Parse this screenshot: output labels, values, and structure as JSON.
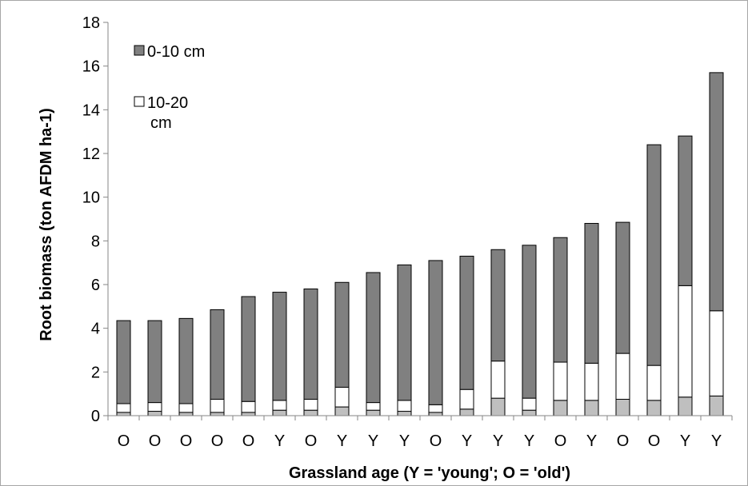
{
  "chart_data": {
    "type": "bar",
    "stacked": true,
    "categories": [
      "O",
      "O",
      "O",
      "O",
      "O",
      "Y",
      "O",
      "Y",
      "Y",
      "Y",
      "O",
      "Y",
      "Y",
      "Y",
      "O",
      "Y",
      "O",
      "O",
      "Y",
      "Y"
    ],
    "series": [
      {
        "values": [
          0.15,
          0.2,
          0.15,
          0.15,
          0.15,
          0.25,
          0.25,
          0.4,
          0.25,
          0.2,
          0.15,
          0.3,
          0.8,
          0.25,
          0.7,
          0.7,
          0.75,
          0.7,
          0.85,
          0.9
        ],
        "color": "#bfbfbf"
      },
      {
        "name": "10-20 cm",
        "values": [
          0.4,
          0.4,
          0.4,
          0.6,
          0.5,
          0.45,
          0.5,
          0.9,
          0.35,
          0.5,
          0.35,
          0.9,
          1.7,
          0.55,
          1.75,
          1.7,
          2.1,
          1.6,
          5.1,
          3.9
        ],
        "color": "#ffffff"
      },
      {
        "name": "0-10 cm",
        "values": [
          3.8,
          3.75,
          3.9,
          4.1,
          4.8,
          4.95,
          5.05,
          4.8,
          5.95,
          6.2,
          6.6,
          6.1,
          5.1,
          7.0,
          5.7,
          6.4,
          6.0,
          10.1,
          6.85,
          10.9
        ],
        "color": "#808080"
      }
    ],
    "legend": [
      {
        "label": "0-10 cm",
        "color": "#808080"
      },
      {
        "label": "10-20\ncm",
        "color": "#ffffff"
      }
    ],
    "legend_position": "top-left",
    "xlabel": "Grassland age (Y = 'young'; O = 'old')",
    "ylabel": "Root biomass (ton AFDM ha-1)",
    "ylim": [
      0,
      18
    ],
    "yticks": [
      0,
      2,
      4,
      6,
      8,
      10,
      12,
      14,
      16,
      18
    ],
    "grid": false
  }
}
